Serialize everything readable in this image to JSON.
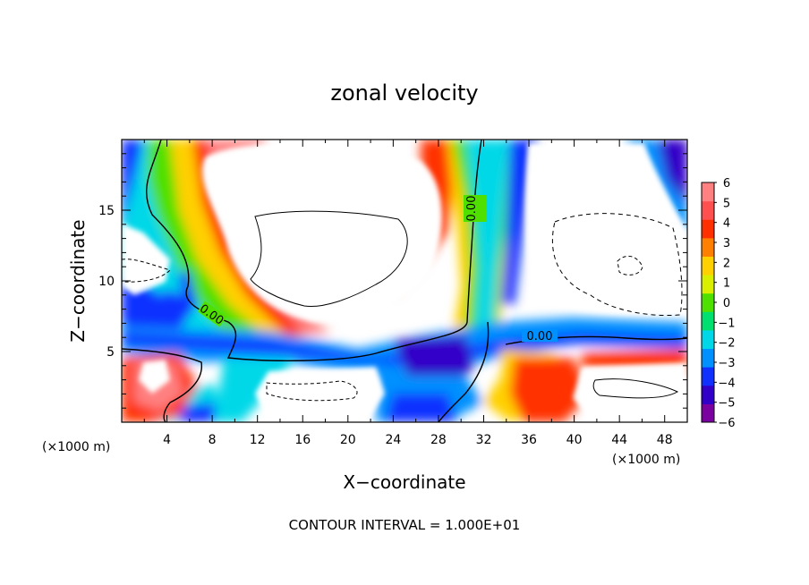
{
  "chart_data": {
    "type": "heatmap",
    "title": "zonal velocity",
    "xlabel": "X−coordinate",
    "ylabel": "Z−coordinate",
    "x_unit_left": "(×1000 m)",
    "x_unit_right": "(×1000 m)",
    "footer": "CONTOUR INTERVAL = 1.000E+01",
    "xlim": [
      0,
      50
    ],
    "ylim": [
      0,
      20
    ],
    "x_ticks": [
      4,
      8,
      12,
      16,
      20,
      24,
      28,
      32,
      36,
      40,
      44,
      48
    ],
    "y_ticks": [
      5,
      10,
      15
    ],
    "colorbar": {
      "ticks": [
        "6",
        "5",
        "4",
        "3",
        "2",
        "1",
        "0",
        "−1",
        "−2",
        "−3",
        "−4",
        "−5",
        "−6"
      ],
      "range": [
        -6,
        6
      ],
      "colors": [
        "#7b00a0",
        "#3000c8",
        "#1030ff",
        "#0090ff",
        "#00d8e8",
        "#00e070",
        "#50e000",
        "#d8f000",
        "#ffd000",
        "#ff8000",
        "#ff3000",
        "#ff5050",
        "#ff8080"
      ]
    },
    "contour_labels": [
      "0.00",
      "0.00",
      "0.00"
    ],
    "contour_label_angles": [
      35,
      -90,
      0
    ]
  }
}
